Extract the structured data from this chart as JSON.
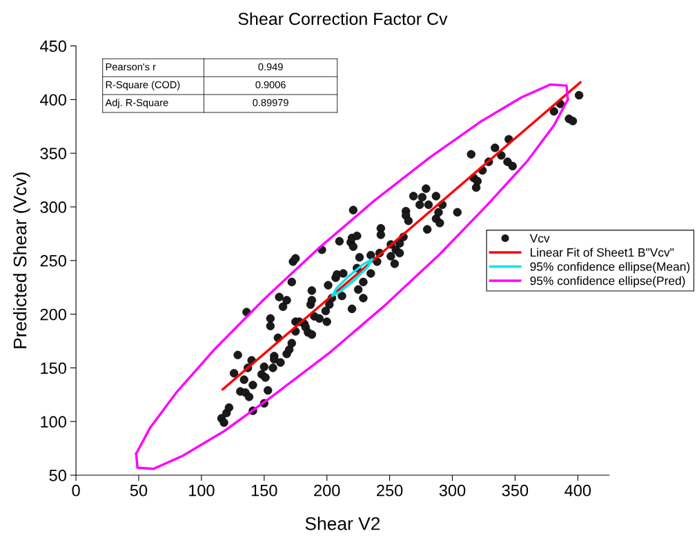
{
  "chart_data": {
    "type": "scatter",
    "title": "Shear Correction Factor Cv",
    "xlabel": "Shear V2",
    "ylabel": "Predicted Shear (Vcv)",
    "xlim": [
      0,
      425
    ],
    "ylim": [
      50,
      450
    ],
    "xticks": [
      0,
      50,
      100,
      150,
      200,
      250,
      300,
      350,
      400
    ],
    "yticks": [
      50,
      100,
      150,
      200,
      250,
      300,
      350,
      400,
      450
    ],
    "grid": false,
    "legend": "right",
    "marker": "circle",
    "annotations": [
      "Pearson's r",
      "0.949",
      "R-Square (COD)",
      "0.9006",
      "Adj. R-Square",
      "0.89979"
    ],
    "series": [
      {
        "name": "Vcv",
        "color": "#1a1a1a",
        "x": [
          116,
          118,
          120,
          122,
          126,
          129,
          131,
          134,
          135,
          136,
          137,
          138,
          140,
          141,
          141,
          148,
          150,
          150,
          151,
          153,
          155,
          155,
          157,
          158,
          158,
          161,
          162,
          163,
          165,
          168,
          168,
          170,
          172,
          172,
          173,
          175,
          175,
          175,
          178,
          182,
          183,
          185,
          187,
          188,
          188,
          188,
          190,
          194,
          196,
          199,
          200,
          201,
          202,
          204,
          207,
          208,
          210,
          212,
          213,
          219,
          220,
          220,
          221,
          221,
          224,
          224,
          225,
          226,
          229,
          229,
          235,
          235,
          240,
          242,
          243,
          243,
          251,
          251,
          254,
          255,
          258,
          258,
          261,
          263,
          263,
          265,
          269,
          274,
          276,
          279,
          280,
          281,
          287,
          287,
          289,
          290,
          292,
          304,
          315,
          317,
          319,
          320,
          324,
          329,
          334,
          339,
          344,
          345,
          348,
          381,
          386,
          393,
          396,
          401
        ],
        "values": [
          103,
          99,
          108,
          113,
          145,
          162,
          128,
          139,
          127,
          202,
          150,
          123,
          157,
          134,
          110,
          144,
          151,
          117,
          141,
          129,
          196,
          189,
          150,
          161,
          158,
          178,
          216,
          155,
          207,
          213,
          163,
          167,
          173,
          230,
          249,
          193,
          184,
          252,
          193,
          191,
          188,
          183,
          209,
          222,
          181,
          213,
          198,
          196,
          260,
          203,
          193,
          227,
          209,
          215,
          234,
          237,
          268,
          217,
          238,
          267,
          271,
          205,
          263,
          297,
          273,
          243,
          223,
          253,
          230,
          215,
          238,
          255,
          249,
          257,
          280,
          274,
          265,
          254,
          247,
          260,
          266,
          257,
          272,
          296,
          292,
          287,
          310,
          302,
          309,
          317,
          279,
          302,
          289,
          310,
          295,
          285,
          302,
          295,
          349,
          327,
          318,
          324,
          334,
          342,
          355,
          348,
          342,
          363,
          338,
          389,
          396,
          382,
          380,
          404
        ]
      },
      {
        "name": "Linear Fit of Sheet1 B\"Vcv\"",
        "type": "line",
        "color": "#ff0000",
        "marker": "none",
        "line_style": "solid",
        "x": [
          117,
          402
        ],
        "values": [
          130,
          416
        ]
      },
      {
        "name": "95% confidence ellipse(Mean)",
        "type": "line",
        "color": "#00e5ee",
        "marker": "none",
        "line_style": "solid",
        "x": [
          204.5,
          207.5,
          218,
          229.5,
          236
        ],
        "values": [
          217.5,
          224,
          236,
          247,
          251
        ]
      },
      {
        "type": "line",
        "color": "#00e5ee",
        "marker": "none",
        "line_style": "solid",
        "x": [
          204.5,
          210.5,
          222,
          232.5,
          236
        ],
        "values": [
          217.5,
          221,
          232,
          244,
          251
        ]
      },
      {
        "name": "95% confidence ellipse(Pred)",
        "type": "line",
        "color": "#ff00ff",
        "marker": "none",
        "line_style": "solid",
        "x": [
          48,
          59,
          80,
          111,
          150,
          193,
          238,
          282,
          322,
          355,
          378,
          391,
          392
        ],
        "values": [
          70,
          94,
          127,
          168,
          214,
          261,
          306,
          346,
          379,
          402,
          414,
          413,
          400
        ]
      },
      {
        "type": "line",
        "color": "#ff00ff",
        "marker": "none",
        "line_style": "solid",
        "x": [
          48,
          49,
          62,
          85,
          118,
          157,
          202,
          247,
          290,
          328,
          360,
          381,
          392
        ],
        "values": [
          70,
          57,
          56,
          68,
          91,
          124,
          164,
          209,
          256,
          302,
          343,
          376,
          400
        ]
      }
    ]
  }
}
